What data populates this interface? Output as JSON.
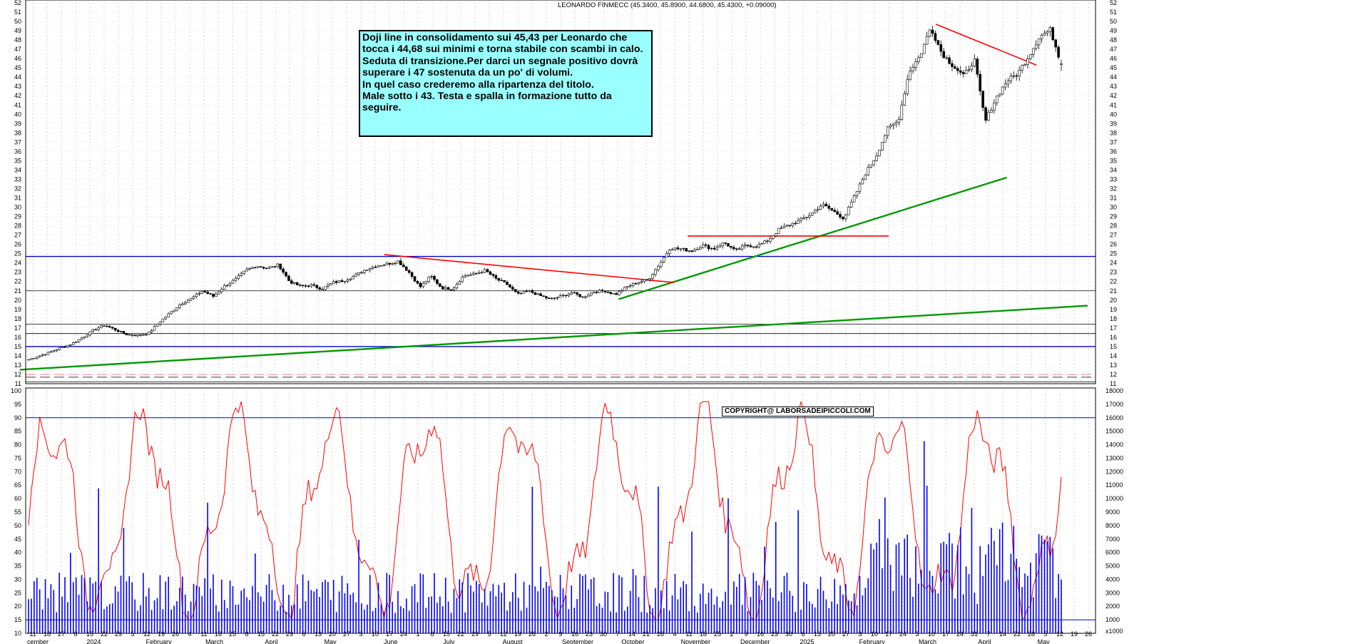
{
  "title": "LEONARDO FINMECC (45.3400, 45.8900, 44.6800, 45.4300, +0.09000)",
  "note": {
    "lines": [
      "Doji line in consolidamento sui 45,43 per Leonardo che tocca i 44,68 sui minimi e torna stabile con scambi in calo.",
      "Seduta di transizione.Per darci un segnale positivo dovrà superare i 47 sostenuta da un po' di volumi.",
      "In quel caso crederemo alla ripartenza del titolo.",
      "Male sotto i 43.  Testa e spalla in formazione tutto da seguire."
    ]
  },
  "copyright": "COPYRIGHT@ LABORSADEIPICCOLI.COM",
  "colors": {
    "price": "#000000",
    "support_green": "#009900",
    "trend_red": "#ff0000",
    "level_blue": "#0000cc",
    "oscillator": "#ff0000",
    "volume": "#0000ff",
    "note_bg": "#99ffff"
  },
  "chart_data": [
    {
      "type": "candlestick",
      "title": "LEONARDO FINMECC (45.3400, 45.8900, 44.6800, 45.4300, +0.09000)",
      "ylim": [
        11,
        52
      ],
      "y_ticks": [
        11,
        12,
        13,
        14,
        15,
        16,
        17,
        18,
        19,
        20,
        21,
        22,
        23,
        24,
        25,
        26,
        27,
        28,
        29,
        30,
        31,
        32,
        33,
        34,
        35,
        36,
        37,
        38,
        39,
        40,
        41,
        42,
        43,
        44,
        45,
        46,
        47,
        48,
        49,
        50,
        51,
        52
      ],
      "x_day_labels": [
        "11",
        "18",
        "27",
        "8",
        "15",
        "22",
        "29",
        "5",
        "12",
        "19",
        "26",
        "4",
        "11",
        "18",
        "25",
        "8",
        "15",
        "22",
        "29",
        "6",
        "13",
        "20",
        "27",
        "3",
        "10",
        "17",
        "24",
        "1",
        "8",
        "15",
        "22",
        "29",
        "5",
        "12",
        "19",
        "26",
        "2",
        "9",
        "16",
        "23",
        "30",
        "7",
        "14",
        "21",
        "28",
        "4",
        "11",
        "18",
        "25",
        "2",
        "9",
        "16",
        "23",
        "30",
        "6",
        "13",
        "20",
        "27",
        "3",
        "10",
        "17",
        "24",
        "3",
        "10",
        "17",
        "24",
        "31",
        "7",
        "14",
        "22",
        "28",
        "5",
        "12",
        "19",
        "26"
      ],
      "x_month_labels": [
        "cember",
        "2024",
        "February",
        "March",
        "April",
        "May",
        "June",
        "July",
        "August",
        "September",
        "October",
        "November",
        "December",
        "2025",
        "February",
        "March",
        "April",
        "May"
      ],
      "last_bar": {
        "open": 45.34,
        "high": 45.89,
        "low": 44.68,
        "close": 45.43,
        "change": 0.09
      },
      "closes_approx": [
        13.6,
        14.0,
        14.4,
        14.9,
        15.3,
        16.0,
        16.8,
        17.3,
        16.8,
        16.3,
        16.2,
        16.4,
        17.6,
        18.6,
        19.6,
        20.2,
        21.0,
        20.4,
        21.5,
        22.2,
        23.2,
        23.7,
        23.4,
        23.8,
        22.0,
        21.5,
        21.6,
        21.2,
        21.9,
        22.1,
        22.6,
        23.3,
        23.7,
        23.9,
        24.2,
        23.0,
        21.4,
        22.6,
        21.3,
        21.2,
        22.6,
        22.8,
        23.2,
        22.3,
        21.7,
        20.6,
        21.0,
        20.5,
        20.1,
        20.4,
        20.8,
        20.3,
        20.9,
        21.0,
        20.6,
        21.4,
        21.9,
        22.2,
        23.8,
        25.6,
        25.5,
        25.3,
        25.9,
        25.5,
        26.2,
        25.3,
        25.9,
        25.8,
        26.4,
        27.6,
        28.1,
        28.6,
        29.3,
        30.3,
        29.6,
        28.8,
        31.2,
        33.7,
        35.6,
        38.4,
        39.3,
        44.6,
        46.3,
        49.4,
        46.6,
        45.3,
        44.1,
        45.9,
        39.2,
        41.8,
        43.6,
        44.4,
        46.3,
        48.4,
        49.1,
        45.43
      ],
      "horizontal_levels": [
        11.2,
        11.7,
        12.0,
        15.0,
        16.4,
        17.4,
        21.0,
        24.7
      ],
      "trendlines": [
        {
          "name": "",
          "color": "#009900",
          "from": [
            "2024-09-30",
            20.1
          ],
          "to": [
            "2025-04-15",
            33.2
          ]
        },
        {
          "name": "",
          "color": "#009900",
          "from": [
            "2023-12-01",
            12.5
          ],
          "to": [
            "2025-05-26",
            19.4
          ]
        },
        {
          "name": "",
          "color": "#ff0000",
          "from": [
            "2024-06-03",
            24.9
          ],
          "to": [
            "2024-10-28",
            21.9
          ]
        },
        {
          "name": "",
          "color": "#ff0000",
          "from": [
            "2024-11-04",
            26.9
          ],
          "to": [
            "2025-02-14",
            26.9
          ]
        },
        {
          "name": "",
          "color": "#ff0000",
          "from": [
            "2025-03-10",
            49.7
          ],
          "to": [
            "2025-04-30",
            45.3
          ]
        }
      ]
    },
    {
      "type": "line",
      "name": "oscillator",
      "ylim": [
        10,
        100
      ],
      "y_ticks": [
        10,
        15,
        20,
        25,
        30,
        35,
        40,
        45,
        50,
        55,
        60,
        65,
        70,
        75,
        80,
        85,
        90,
        95,
        100
      ],
      "reference_lines": [
        15,
        90
      ]
    },
    {
      "type": "bar",
      "name": "volume",
      "ylim": [
        0,
        18000
      ],
      "y_ticks": [
        1000,
        2000,
        3000,
        4000,
        5000,
        6000,
        7000,
        8000,
        9000,
        10000,
        11000,
        12000,
        13000,
        14000,
        15000,
        16000,
        17000,
        18000
      ],
      "unit": "x1000"
    }
  ]
}
